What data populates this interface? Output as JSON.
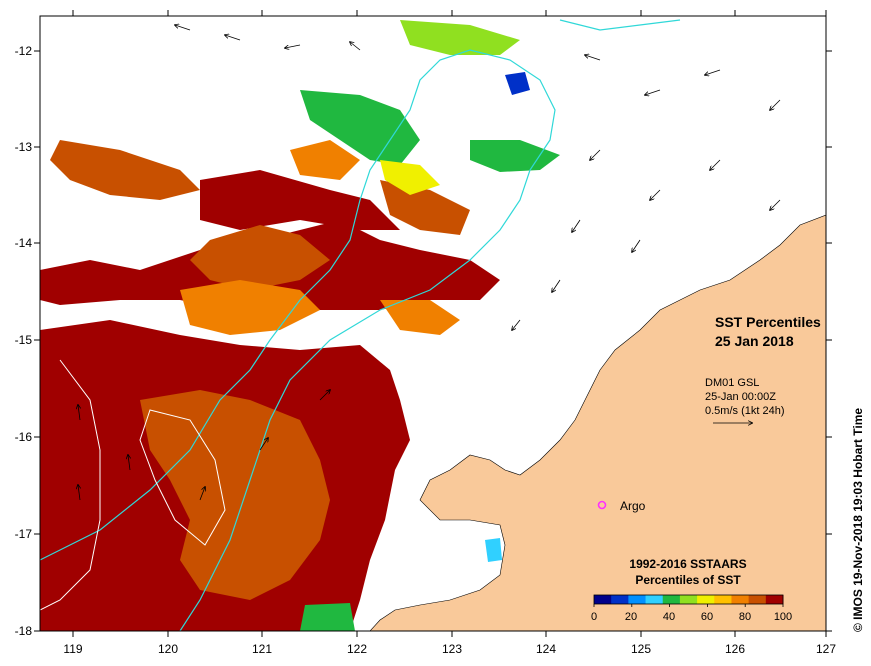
{
  "map": {
    "title_line1": "SST Percentiles",
    "title_line2": "25 Jan 2018",
    "x_ticks": [
      "119",
      "120",
      "121",
      "122",
      "123",
      "124",
      "125",
      "126",
      "127"
    ],
    "y_ticks": [
      "-12",
      "-13",
      "-14",
      "-15",
      "-16",
      "-17",
      "-18"
    ],
    "current_info": {
      "line1": "DM01 GSL",
      "line2": "25-Jan 00:00Z",
      "line3": "0.5m/s (1kt 24h)"
    },
    "argo_label": "Argo",
    "legend": {
      "title_line1": "1992-2016 SSTAARS",
      "title_line2": "Percentiles of SST",
      "tick_labels": [
        "0",
        "20",
        "40",
        "60",
        "80",
        "100"
      ],
      "colors": [
        "#00008b",
        "#0030c8",
        "#0090ff",
        "#30d0ff",
        "#20b840",
        "#90e020",
        "#f0f000",
        "#ffc000",
        "#f08000",
        "#c85000",
        "#a00000"
      ]
    },
    "credit": "© IMOS 19-Nov-2018 19:03 Hobart Time",
    "colors": {
      "land": "#f9c99a",
      "contour_cyan": "#30d8d8",
      "contour_white": "#ffffff",
      "argo_marker": "#ff30ff"
    }
  }
}
